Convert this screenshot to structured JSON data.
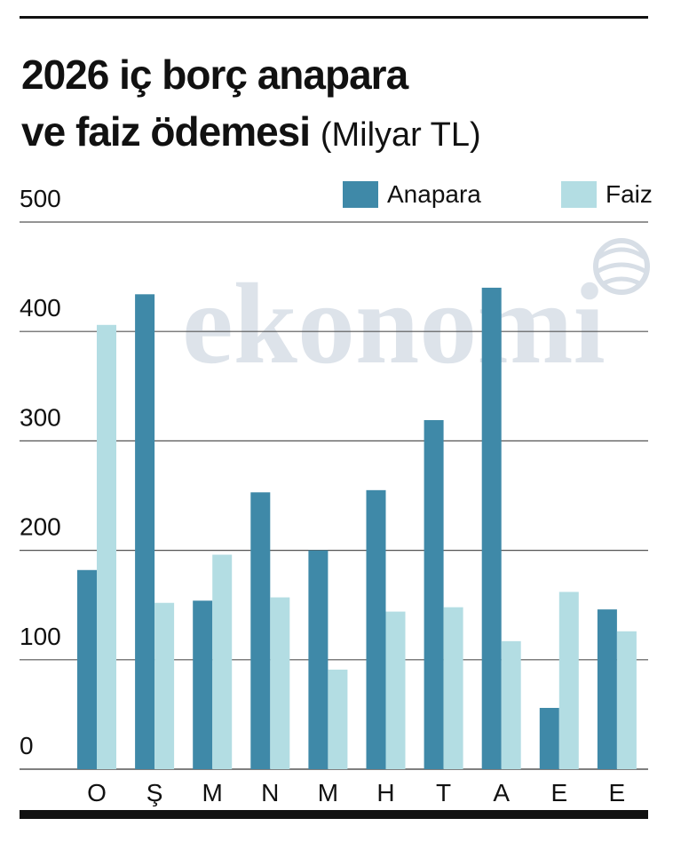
{
  "header": {
    "title_line1": "2026 iç borç anapara",
    "title_line2": "ve faiz ödemesi",
    "title_unit": "(Milyar TL)"
  },
  "watermark": "ekonomi",
  "colors": {
    "anapara": "#3f89a8",
    "faiz": "#b3dde3",
    "grid": "#555555"
  },
  "chart_data": {
    "type": "bar",
    "title": "2026 iç borç anapara ve faiz ödemesi (Milyar TL)",
    "categories": [
      "O",
      "Ş",
      "M",
      "N",
      "M",
      "H",
      "T",
      "A",
      "E",
      "E"
    ],
    "series": [
      {
        "name": "Anapara",
        "values": [
          182,
          434,
          154,
          253,
          200,
          255,
          319,
          440,
          56,
          146
        ]
      },
      {
        "name": "Faiz",
        "values": [
          406,
          152,
          196,
          157,
          91,
          144,
          148,
          117,
          162,
          126
        ]
      }
    ],
    "yticks": [
      "0",
      "100",
      "200",
      "300",
      "400",
      "500"
    ],
    "ylim": [
      0,
      500
    ],
    "grid": true,
    "legend": "top-right"
  }
}
